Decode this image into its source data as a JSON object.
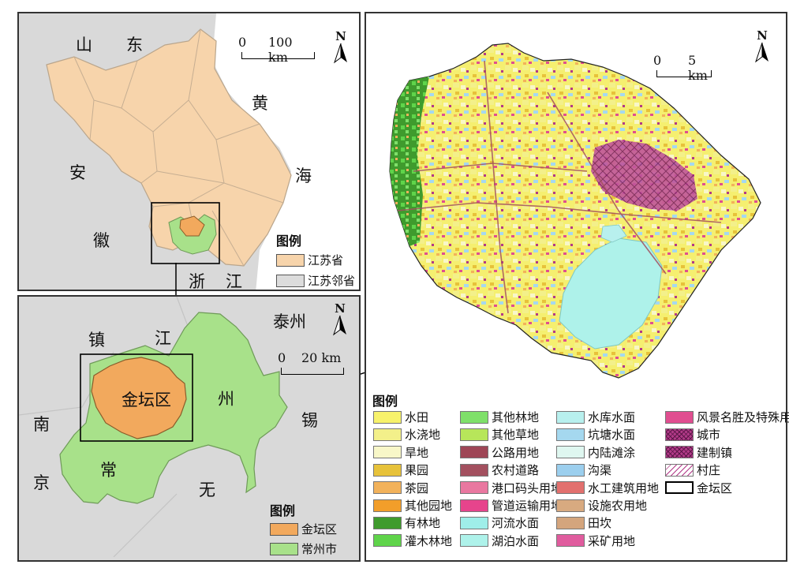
{
  "panel_a": {
    "labels": [
      "山",
      "东",
      "黄",
      "海",
      "安",
      "徽",
      "浙",
      "江"
    ],
    "scale": {
      "zero": "0",
      "value": "100 km"
    },
    "north": "N",
    "legend": {
      "title": "图例",
      "items": [
        {
          "label": "江苏省",
          "color": "#f7d4ab"
        },
        {
          "label": "江苏邻省",
          "color": "#dcdcdc"
        }
      ]
    }
  },
  "panel_b": {
    "labels": [
      "泰州",
      "镇",
      "江",
      "州",
      "南",
      "京",
      "常",
      "无",
      "锡"
    ],
    "region_label": "金坛区",
    "scale": {
      "zero": "0",
      "value": "20 km"
    },
    "north": "N",
    "legend": {
      "title": "图例",
      "items": [
        {
          "label": "金坛区",
          "color": "#f2a95d"
        },
        {
          "label": "常州市",
          "color": "#a8e18a"
        }
      ]
    }
  },
  "panel_c": {
    "scale": {
      "zero": "0",
      "value": "5 km"
    },
    "north": "N",
    "legend_title": "图例",
    "landuse": [
      {
        "label": "水田",
        "color": "#f7f26b",
        "pattern": "solid"
      },
      {
        "label": "水浇地",
        "color": "#f3f08a",
        "pattern": "solid"
      },
      {
        "label": "旱地",
        "color": "#f8f7c8",
        "pattern": "solid"
      },
      {
        "label": "果园",
        "color": "#e7c23a",
        "pattern": "solid"
      },
      {
        "label": "茶园",
        "color": "#f2b25b",
        "pattern": "solid"
      },
      {
        "label": "其他园地",
        "color": "#f29e2a",
        "pattern": "solid"
      },
      {
        "label": "有林地",
        "color": "#3f9b2d",
        "pattern": "solid"
      },
      {
        "label": "灌木林地",
        "color": "#5fd44a",
        "pattern": "solid"
      },
      {
        "label": "其他林地",
        "color": "#7fe06a",
        "pattern": "solid"
      },
      {
        "label": "其他草地",
        "color": "#b7e65a",
        "pattern": "solid"
      },
      {
        "label": "公路用地",
        "color": "#9e4656",
        "pattern": "solid"
      },
      {
        "label": "农村道路",
        "color": "#a3505f",
        "pattern": "solid"
      },
      {
        "label": "港口码头用地",
        "color": "#e978a0",
        "pattern": "solid"
      },
      {
        "label": "管道运输用地",
        "color": "#e6448c",
        "pattern": "solid"
      },
      {
        "label": "河流水面",
        "color": "#9feee9",
        "pattern": "solid"
      },
      {
        "label": "湖泊水面",
        "color": "#aef2ea",
        "pattern": "solid"
      },
      {
        "label": "水库水面",
        "color": "#b8f0ee",
        "pattern": "solid"
      },
      {
        "label": "坑塘水面",
        "color": "#a5d8ef",
        "pattern": "solid"
      },
      {
        "label": "内陆滩涂",
        "color": "#dff7f0",
        "pattern": "solid"
      },
      {
        "label": "沟渠",
        "color": "#9ccfee",
        "pattern": "solid"
      },
      {
        "label": "水工建筑用地",
        "color": "#e2706e",
        "pattern": "solid"
      },
      {
        "label": "设施农用地",
        "color": "#d8aa80",
        "pattern": "solid"
      },
      {
        "label": "田坎",
        "color": "#d4a57d",
        "pattern": "solid"
      },
      {
        "label": "采矿用地",
        "color": "#e05c9e",
        "pattern": "solid"
      },
      {
        "label": "风景名胜及特殊用地",
        "color": "#e04e90",
        "pattern": "solid"
      },
      {
        "label": "城市",
        "color": "#b23a88",
        "pattern": "cross"
      },
      {
        "label": "建制镇",
        "color": "#b23a88",
        "pattern": "cross"
      },
      {
        "label": "村庄",
        "color": "#ffffff",
        "pattern": "hatch"
      },
      {
        "label": "金坛区",
        "color": "#ffffff",
        "pattern": "outline"
      }
    ]
  }
}
